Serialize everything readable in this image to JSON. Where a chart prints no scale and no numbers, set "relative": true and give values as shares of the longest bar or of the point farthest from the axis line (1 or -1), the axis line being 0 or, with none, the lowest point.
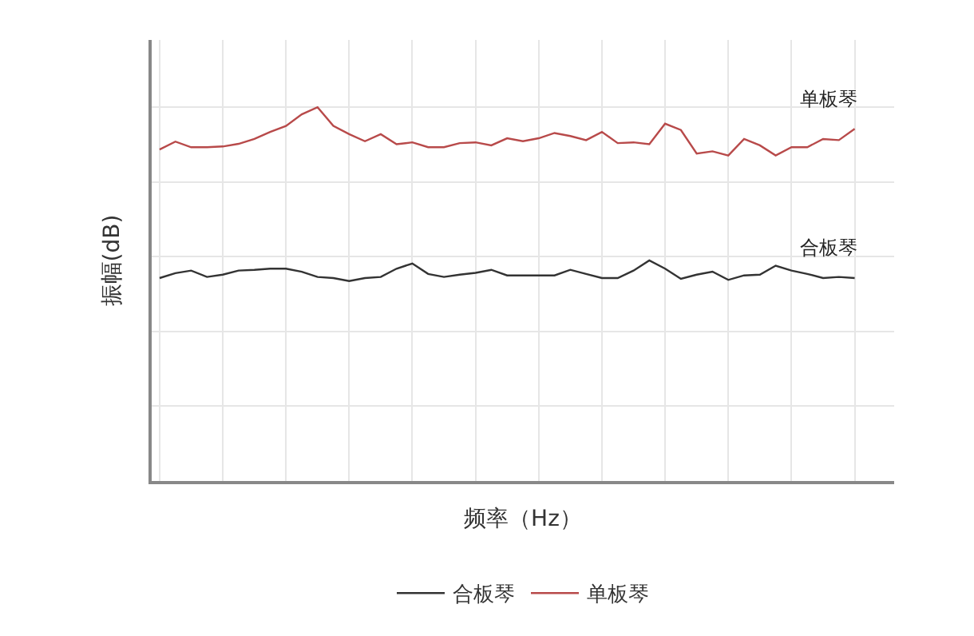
{
  "chart_data": {
    "type": "line",
    "relative": true,
    "xlabel": "频率（Hz）",
    "ylabel": "振幅(dB)",
    "grid": true,
    "legend": "bottom",
    "marker": "none",
    "line_style": "solid",
    "categories": [
      null,
      null,
      null,
      null,
      null,
      null,
      null,
      null,
      null,
      null,
      null,
      null,
      null,
      null,
      null,
      null,
      null,
      null,
      null,
      null,
      null,
      null,
      null,
      null,
      null,
      null,
      null,
      null,
      null,
      null,
      null,
      null,
      null,
      null,
      null,
      null,
      null,
      null,
      null,
      null,
      null,
      null,
      null,
      null,
      null
    ],
    "series": [
      {
        "name": "合板琴",
        "color": "#333333",
        "values": [
          0.543,
          0.556,
          0.563,
          0.546,
          0.552,
          0.563,
          0.565,
          0.568,
          0.568,
          0.56,
          0.546,
          0.543,
          0.535,
          0.543,
          0.546,
          0.568,
          0.582,
          0.554,
          0.546,
          0.552,
          0.557,
          0.565,
          0.55,
          0.55,
          0.55,
          0.55,
          0.565,
          0.554,
          0.543,
          0.543,
          0.563,
          0.59,
          0.568,
          0.541,
          0.552,
          0.56,
          0.538,
          0.55,
          0.552,
          0.576,
          0.563,
          0.554,
          0.543,
          0.546,
          0.543
        ]
      },
      {
        "name": "单板琴",
        "color": "#b84a4a",
        "values": [
          0.887,
          0.908,
          0.893,
          0.893,
          0.895,
          0.902,
          0.915,
          0.934,
          0.95,
          0.981,
          1.0,
          0.95,
          0.928,
          0.909,
          0.928,
          0.901,
          0.906,
          0.893,
          0.893,
          0.904,
          0.906,
          0.898,
          0.917,
          0.909,
          0.917,
          0.931,
          0.923,
          0.912,
          0.934,
          0.904,
          0.906,
          0.901,
          0.956,
          0.939,
          0.876,
          0.882,
          0.871,
          0.915,
          0.898,
          0.871,
          0.893,
          0.893,
          0.915,
          0.912,
          0.942
        ]
      }
    ]
  }
}
